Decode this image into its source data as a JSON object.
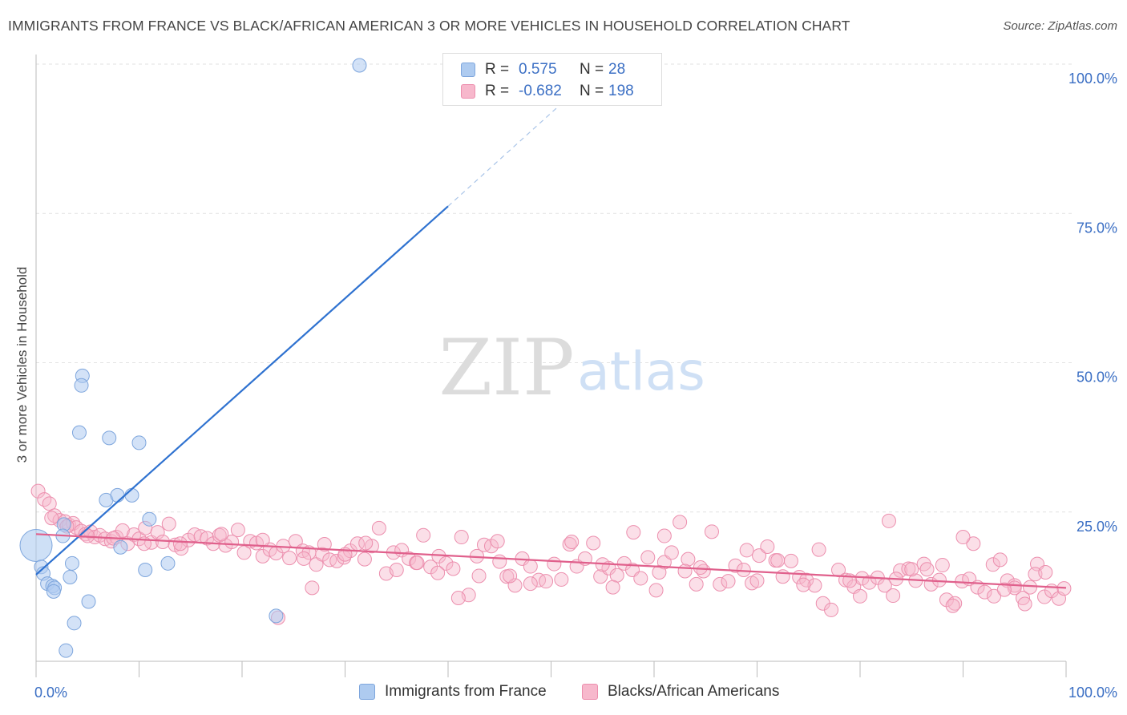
{
  "title": "IMMIGRANTS FROM FRANCE VS BLACK/AFRICAN AMERICAN 3 OR MORE VEHICLES IN HOUSEHOLD CORRELATION CHART",
  "source": "Source: ZipAtlas.com",
  "watermark": {
    "zip": "ZIP",
    "atlas": "atlas"
  },
  "legend": {
    "rows": [
      {
        "r_label": "R =",
        "r_value": "0.575",
        "n_label": "N =",
        "n_value": "28"
      },
      {
        "r_label": "R =",
        "r_value": "-0.682",
        "n_label": "N =",
        "n_value": "198"
      }
    ]
  },
  "chart_data": {
    "type": "scatter",
    "xlabel": "",
    "ylabel": "3 or more Vehicles in Household",
    "xlim": [
      0,
      100
    ],
    "ylim": [
      0,
      100
    ],
    "x_tick_labels": [
      "0.0%",
      "100.0%"
    ],
    "y_tick_labels": [
      "25.0%",
      "50.0%",
      "75.0%",
      "100.0%"
    ],
    "y_ticks": [
      25,
      50,
      75,
      100
    ],
    "grid": true,
    "colors": {
      "blue_fill": "#aecbf0",
      "blue_stroke": "#7ea6dd",
      "blue_line": "#2f72d0",
      "pink_fill": "#f7b8cc",
      "pink_stroke": "#ec8fae",
      "pink_line": "#e0608c",
      "tick_text": "#3b6fc4"
    },
    "series": [
      {
        "name": "Immigrants from France",
        "trend": {
          "x0": 0,
          "y0": 14.5,
          "x1": 40,
          "y1": 76.2,
          "dash_to_x": 53,
          "dash_to_y": 96.5
        },
        "points": [
          [
            31.4,
            99.8
          ],
          [
            4.5,
            47.8
          ],
          [
            4.4,
            46.2
          ],
          [
            4.2,
            38.3
          ],
          [
            7.1,
            37.4
          ],
          [
            10.0,
            36.6
          ],
          [
            6.8,
            27.0
          ],
          [
            7.9,
            27.8
          ],
          [
            9.3,
            27.8
          ],
          [
            11.0,
            23.8
          ],
          [
            2.7,
            22.9
          ],
          [
            2.6,
            21.0
          ],
          [
            8.2,
            19.1
          ],
          [
            0.0,
            19.4
          ],
          [
            0.5,
            15.8
          ],
          [
            3.5,
            16.4
          ],
          [
            12.8,
            16.4
          ],
          [
            10.6,
            15.3
          ],
          [
            0.7,
            14.7
          ],
          [
            3.3,
            14.1
          ],
          [
            1.1,
            13.0
          ],
          [
            1.6,
            12.6
          ],
          [
            1.8,
            12.3
          ],
          [
            1.7,
            11.7
          ],
          [
            5.1,
            10.0
          ],
          [
            23.3,
            7.6
          ],
          [
            3.7,
            6.4
          ],
          [
            2.9,
            1.8
          ]
        ],
        "big_point": [
          0.0,
          19.4
        ]
      },
      {
        "name": "Blacks/African Americans",
        "trend": {
          "x0": 0,
          "y0": 21.3,
          "x1": 100,
          "y1": 12.3
        },
        "points": [
          [
            0.2,
            28.5
          ],
          [
            0.8,
            27.1
          ],
          [
            1.3,
            26.4
          ],
          [
            1.8,
            24.4
          ],
          [
            2.3,
            23.6
          ],
          [
            2.8,
            23.4
          ],
          [
            3.2,
            22.8
          ],
          [
            3.6,
            23.1
          ],
          [
            3.9,
            22.4
          ],
          [
            4.4,
            21.8
          ],
          [
            4.8,
            21.3
          ],
          [
            5.3,
            21.7
          ],
          [
            5.7,
            20.8
          ],
          [
            6.2,
            21.1
          ],
          [
            6.7,
            20.5
          ],
          [
            7.3,
            20.1
          ],
          [
            7.8,
            20.8
          ],
          [
            8.4,
            21.9
          ],
          [
            8.9,
            19.7
          ],
          [
            9.5,
            21.2
          ],
          [
            10.0,
            20.5
          ],
          [
            10.6,
            22.3
          ],
          [
            11.2,
            19.9
          ],
          [
            11.8,
            21.6
          ],
          [
            12.3,
            20.0
          ],
          [
            12.9,
            23.0
          ],
          [
            13.5,
            19.5
          ],
          [
            14.1,
            18.9
          ],
          [
            14.8,
            20.3
          ],
          [
            15.4,
            21.2
          ],
          [
            16.0,
            20.9
          ],
          [
            16.6,
            20.6
          ],
          [
            17.2,
            19.7
          ],
          [
            17.8,
            21.1
          ],
          [
            18.4,
            19.4
          ],
          [
            19.0,
            20.0
          ],
          [
            19.6,
            22.0
          ],
          [
            20.2,
            18.2
          ],
          [
            20.8,
            20.1
          ],
          [
            21.4,
            19.8
          ],
          [
            22.0,
            17.6
          ],
          [
            22.7,
            18.7
          ],
          [
            23.3,
            18.1
          ],
          [
            24.0,
            19.3
          ],
          [
            24.6,
            17.3
          ],
          [
            25.2,
            20.1
          ],
          [
            25.9,
            18.5
          ],
          [
            26.5,
            18.2
          ],
          [
            27.2,
            16.2
          ],
          [
            27.8,
            17.9
          ],
          [
            28.5,
            17.0
          ],
          [
            29.2,
            16.8
          ],
          [
            29.9,
            17.4
          ],
          [
            30.5,
            18.5
          ],
          [
            31.2,
            19.7
          ],
          [
            31.9,
            17.1
          ],
          [
            32.6,
            19.3
          ],
          [
            33.3,
            22.3
          ],
          [
            34.0,
            14.7
          ],
          [
            34.7,
            18.2
          ],
          [
            35.5,
            18.6
          ],
          [
            36.2,
            17.2
          ],
          [
            36.9,
            16.5
          ],
          [
            37.6,
            21.1
          ],
          [
            38.3,
            15.8
          ],
          [
            39.1,
            17.6
          ],
          [
            39.8,
            16.4
          ],
          [
            40.5,
            15.5
          ],
          [
            41.3,
            20.8
          ],
          [
            42.0,
            11.1
          ],
          [
            42.8,
            17.6
          ],
          [
            43.5,
            19.5
          ],
          [
            44.2,
            19.3
          ],
          [
            45.0,
            16.7
          ],
          [
            45.7,
            14.2
          ],
          [
            46.5,
            12.7
          ],
          [
            47.2,
            17.2
          ],
          [
            48.0,
            15.9
          ],
          [
            48.8,
            13.6
          ],
          [
            49.5,
            13.4
          ],
          [
            50.3,
            16.3
          ],
          [
            51.0,
            13.7
          ],
          [
            51.8,
            19.6
          ],
          [
            52.5,
            15.9
          ],
          [
            53.3,
            17.2
          ],
          [
            54.1,
            19.8
          ],
          [
            54.8,
            14.2
          ],
          [
            55.6,
            15.6
          ],
          [
            56.4,
            14.4
          ],
          [
            57.1,
            16.4
          ],
          [
            57.9,
            15.3
          ],
          [
            58.7,
            13.9
          ],
          [
            59.4,
            17.4
          ],
          [
            60.2,
            11.9
          ],
          [
            61.0,
            16.6
          ],
          [
            61.7,
            18.2
          ],
          [
            62.5,
            23.3
          ],
          [
            63.3,
            17.1
          ],
          [
            64.1,
            12.9
          ],
          [
            64.8,
            15.1
          ],
          [
            65.6,
            21.7
          ],
          [
            66.4,
            12.9
          ],
          [
            67.2,
            13.4
          ],
          [
            67.9,
            16.0
          ],
          [
            68.7,
            15.3
          ],
          [
            69.5,
            13.1
          ],
          [
            70.2,
            17.7
          ],
          [
            71.0,
            19.2
          ],
          [
            71.8,
            16.9
          ],
          [
            72.5,
            14.2
          ],
          [
            73.3,
            16.8
          ],
          [
            74.1,
            14.1
          ],
          [
            74.8,
            13.6
          ],
          [
            75.6,
            12.7
          ],
          [
            76.4,
            9.7
          ],
          [
            77.2,
            8.6
          ],
          [
            77.9,
            15.3
          ],
          [
            78.6,
            13.6
          ],
          [
            79.4,
            12.5
          ],
          [
            80.2,
            13.9
          ],
          [
            80.9,
            13.2
          ],
          [
            81.7,
            14.0
          ],
          [
            82.4,
            12.7
          ],
          [
            83.2,
            11.0
          ],
          [
            83.9,
            15.2
          ],
          [
            84.7,
            15.5
          ],
          [
            85.4,
            13.5
          ],
          [
            86.2,
            16.3
          ],
          [
            86.9,
            12.9
          ],
          [
            87.7,
            13.6
          ],
          [
            88.4,
            10.3
          ],
          [
            89.2,
            9.7
          ],
          [
            89.9,
            13.4
          ],
          [
            90.6,
            13.8
          ],
          [
            91.4,
            12.4
          ],
          [
            92.1,
            11.6
          ],
          [
            92.9,
            16.2
          ],
          [
            93.6,
            17.0
          ],
          [
            94.3,
            13.5
          ],
          [
            95.0,
            12.7
          ],
          [
            95.8,
            10.6
          ],
          [
            96.5,
            12.4
          ],
          [
            97.2,
            16.3
          ],
          [
            97.9,
            10.8
          ],
          [
            98.6,
            11.8
          ],
          [
            99.3,
            10.5
          ],
          [
            32.0,
            19.8
          ],
          [
            44.8,
            20.1
          ],
          [
            58.0,
            21.6
          ],
          [
            70.0,
            13.5
          ],
          [
            76.0,
            18.7
          ],
          [
            82.8,
            23.5
          ],
          [
            88.0,
            16.1
          ],
          [
            93.0,
            10.9
          ],
          [
            96.0,
            9.6
          ],
          [
            99.8,
            12.2
          ],
          [
            97.0,
            14.6
          ],
          [
            95.0,
            12.3
          ],
          [
            91.0,
            19.7
          ],
          [
            86.5,
            15.4
          ],
          [
            80.0,
            10.9
          ],
          [
            74.5,
            12.8
          ],
          [
            69.0,
            18.6
          ],
          [
            64.5,
            15.7
          ],
          [
            60.5,
            14.9
          ],
          [
            56.0,
            12.4
          ],
          [
            52.0,
            20.0
          ],
          [
            48.0,
            13.0
          ],
          [
            43.0,
            14.3
          ],
          [
            39.0,
            14.8
          ],
          [
            35.0,
            15.3
          ],
          [
            30.0,
            17.9
          ],
          [
            26.0,
            17.2
          ],
          [
            22.0,
            20.3
          ],
          [
            18.0,
            21.3
          ],
          [
            14.0,
            19.7
          ],
          [
            10.5,
            19.7
          ],
          [
            7.5,
            20.6
          ],
          [
            5.0,
            21.0
          ],
          [
            3.0,
            22.6
          ],
          [
            1.5,
            24.0
          ],
          [
            28.0,
            19.6
          ],
          [
            37.0,
            16.5
          ],
          [
            46.0,
            14.3
          ],
          [
            55.0,
            16.2
          ],
          [
            63.0,
            15.1
          ],
          [
            72.0,
            16.9
          ],
          [
            79.0,
            13.5
          ],
          [
            85.0,
            15.4
          ],
          [
            90.0,
            20.8
          ],
          [
            94.0,
            12.0
          ],
          [
            98.0,
            14.9
          ],
          [
            26.8,
            12.3
          ],
          [
            41.0,
            10.6
          ],
          [
            23.5,
            7.3
          ],
          [
            89.0,
            9.3
          ],
          [
            83.5,
            13.8
          ],
          [
            61.0,
            21.0
          ]
        ]
      }
    ]
  }
}
